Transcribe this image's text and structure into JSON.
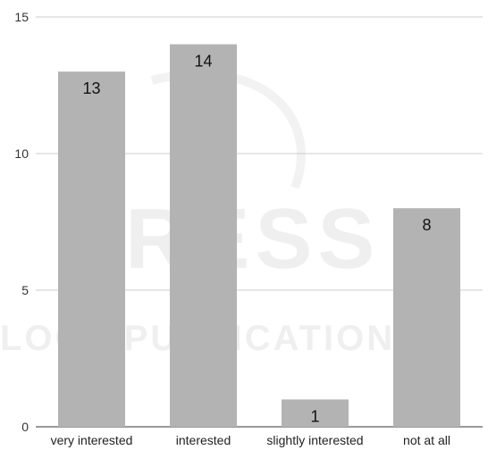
{
  "chart_data": {
    "type": "bar",
    "categories": [
      "very interested",
      "interested",
      "slightly interested",
      "not at all"
    ],
    "values": [
      13,
      14,
      1,
      8
    ],
    "title": "",
    "xlabel": "",
    "ylabel": "",
    "ylim": [
      0,
      15
    ],
    "yticks": [
      0,
      5,
      10,
      15
    ],
    "grid": true,
    "bar_color": "#b3b3b3",
    "grid_color": "#cccccc"
  },
  "watermark": {
    "line1": "PRESS",
    "line2": "LOGY PUBLICATIONS"
  }
}
